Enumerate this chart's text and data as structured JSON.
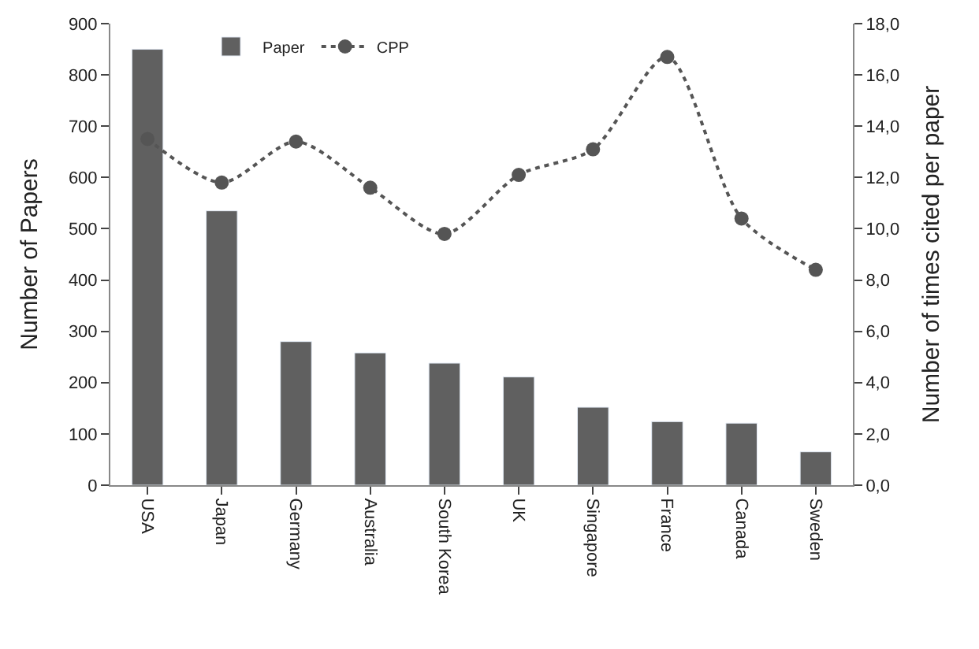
{
  "chart_data": {
    "type": "bar",
    "xlabel": null,
    "ylabel": "Number of Papers",
    "y2label": "Number of times cited per paper",
    "categories": [
      "USA",
      "Japan",
      "Germany",
      "Australia",
      "South Korea",
      "UK",
      "Singapore",
      "France",
      "Canada",
      "Sweden"
    ],
    "series": [
      {
        "name": "Paper",
        "color": "#606060",
        "values": [
          850,
          535,
          280,
          258,
          238,
          211,
          152,
          124,
          121,
          65
        ]
      },
      {
        "name": "CPP",
        "type": "line",
        "axis": "y2",
        "color": "#555555",
        "line_style": "dotted",
        "marker": "circle",
        "values": [
          13.5,
          11.8,
          13.4,
          11.6,
          9.8,
          12.1,
          13.1,
          16.7,
          10.4,
          8.4
        ]
      }
    ],
    "ylim": [
      0,
      900
    ],
    "yticks": [
      0,
      100,
      200,
      300,
      400,
      500,
      600,
      700,
      800,
      900
    ],
    "y2lim": [
      0,
      18
    ],
    "y2ticks": [
      {
        "value": 0,
        "label": "0,0"
      },
      {
        "value": 2,
        "label": "2,0"
      },
      {
        "value": 4,
        "label": "4,0"
      },
      {
        "value": 6,
        "label": "6,0"
      },
      {
        "value": 8,
        "label": "8,0"
      },
      {
        "value": 10,
        "label": "10,0"
      },
      {
        "value": 12,
        "label": "12,0"
      },
      {
        "value": 14,
        "label": "14,0"
      },
      {
        "value": 16,
        "label": "16,0"
      },
      {
        "value": 18,
        "label": "18,0"
      }
    ],
    "legend": "top left"
  }
}
